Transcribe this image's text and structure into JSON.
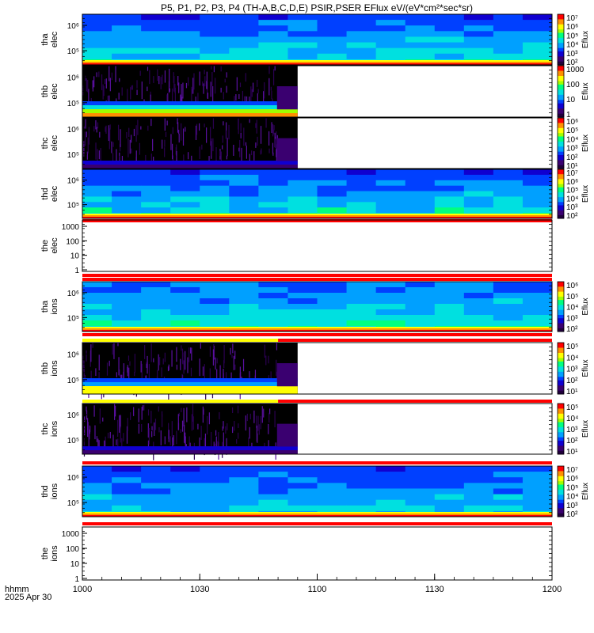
{
  "title": "P5, P1, P2, P3, P4 (TH-A,B,C,D,E) PSIR,PSER EFlux eV/(eV*cm²*sec*sr)",
  "time_axis": {
    "label_line1": "hhmm",
    "label_line2": "2025 Apr 30",
    "ticks": [
      "1000",
      "1030",
      "1100",
      "1130",
      "1200"
    ]
  },
  "colorbar_label": "Eflux",
  "colors": {
    "palette": [
      "#20003c",
      "#3a0070",
      "#1000d0",
      "#0040ff",
      "#00a0ff",
      "#00e0e0",
      "#00ff80",
      "#a0ff00",
      "#ffff00",
      "#ff9000",
      "#ff0000"
    ],
    "quality_flag_red": "#ff0000",
    "quality_flag_yellow": "#ffff00"
  },
  "chart_data": [
    {
      "type": "heatmap",
      "panel": "tha-elec",
      "ylabel_line1": "tha",
      "ylabel_line2": "elec",
      "y_tick_labels": [
        "10⁶",
        "10⁵"
      ],
      "colorbar_ticks": [
        "10⁷",
        "10⁶",
        "10⁵",
        "10⁴",
        "10³",
        "10²"
      ],
      "data_coverage_end": "1200",
      "dominant_levels": [
        0.3,
        0.55
      ]
    },
    {
      "type": "heatmap",
      "panel": "thb-elec",
      "ylabel_line1": "thb",
      "ylabel_line2": "elec",
      "y_tick_labels": [
        "10⁶",
        "10⁵"
      ],
      "colorbar_ticks": [
        "1000",
        "100",
        "10",
        "1"
      ],
      "data_coverage_end": "1055",
      "dominant_levels": [
        0.05,
        0.7
      ]
    },
    {
      "type": "heatmap",
      "panel": "thc-elec",
      "ylabel_line1": "thc",
      "ylabel_line2": "elec",
      "y_tick_labels": [
        "10⁶",
        "10⁵"
      ],
      "colorbar_ticks": [
        "10⁶",
        "10⁵",
        "10⁴",
        "10³",
        "10²",
        "10¹"
      ],
      "data_coverage_end": "1055",
      "dominant_levels": [
        0.02,
        0.1
      ]
    },
    {
      "type": "heatmap",
      "panel": "thd-elec",
      "ylabel_line1": "thd",
      "ylabel_line2": "elec",
      "y_tick_labels": [
        "10⁶",
        "10⁵"
      ],
      "colorbar_ticks": [
        "10⁷",
        "10⁶",
        "10⁵",
        "10⁴",
        "10³",
        "10²"
      ],
      "data_coverage_end": "1200",
      "dominant_levels": [
        0.3,
        0.55
      ]
    },
    {
      "type": "heatmap",
      "panel": "the-elec",
      "ylabel_line1": "the",
      "ylabel_line2": "elec",
      "y_tick_labels": [
        "1000",
        "100",
        "10",
        "1"
      ],
      "colorbar_ticks": [],
      "data_coverage_end": "1000",
      "dominant_levels": []
    },
    {
      "type": "heatmap",
      "panel": "tha-ions",
      "ylabel_line1": "tha",
      "ylabel_line2": "ions",
      "y_tick_labels": [
        "10⁶",
        "10⁵"
      ],
      "colorbar_ticks": [
        "10⁶",
        "10⁵",
        "10⁴",
        "10³",
        "10²"
      ],
      "data_coverage_end": "1200",
      "dominant_levels": [
        0.35,
        0.55
      ]
    },
    {
      "type": "heatmap",
      "panel": "thb-ions",
      "ylabel_line1": "thb",
      "ylabel_line2": "ions",
      "y_tick_labels": [
        "10⁶",
        "10⁵"
      ],
      "colorbar_ticks": [
        "10⁵",
        "10⁴",
        "10³",
        "10²",
        "10¹"
      ],
      "data_coverage_end": "1055",
      "dominant_levels": [
        0.05,
        0.3
      ]
    },
    {
      "type": "heatmap",
      "panel": "thc-ions",
      "ylabel_line1": "thc",
      "ylabel_line2": "ions",
      "y_tick_labels": [
        "10⁶",
        "10⁵"
      ],
      "colorbar_ticks": [
        "10⁵",
        "10⁴",
        "10³",
        "10²",
        "10¹"
      ],
      "data_coverage_end": "1055",
      "dominant_levels": [
        0.02,
        0.1
      ]
    },
    {
      "type": "heatmap",
      "panel": "thd-ions",
      "ylabel_line1": "thd",
      "ylabel_line2": "ions",
      "y_tick_labels": [
        "10⁶",
        "10⁵"
      ],
      "colorbar_ticks": [
        "10⁷",
        "10⁶",
        "10⁵",
        "10⁴",
        "10³",
        "10²"
      ],
      "data_coverage_end": "1200",
      "dominant_levels": [
        0.3,
        0.5
      ]
    },
    {
      "type": "heatmap",
      "panel": "the-ions",
      "ylabel_line1": "the",
      "ylabel_line2": "ions",
      "y_tick_labels": [
        "1000",
        "100",
        "10",
        "1"
      ],
      "colorbar_ticks": [],
      "data_coverage_end": "1000",
      "dominant_levels": []
    }
  ]
}
